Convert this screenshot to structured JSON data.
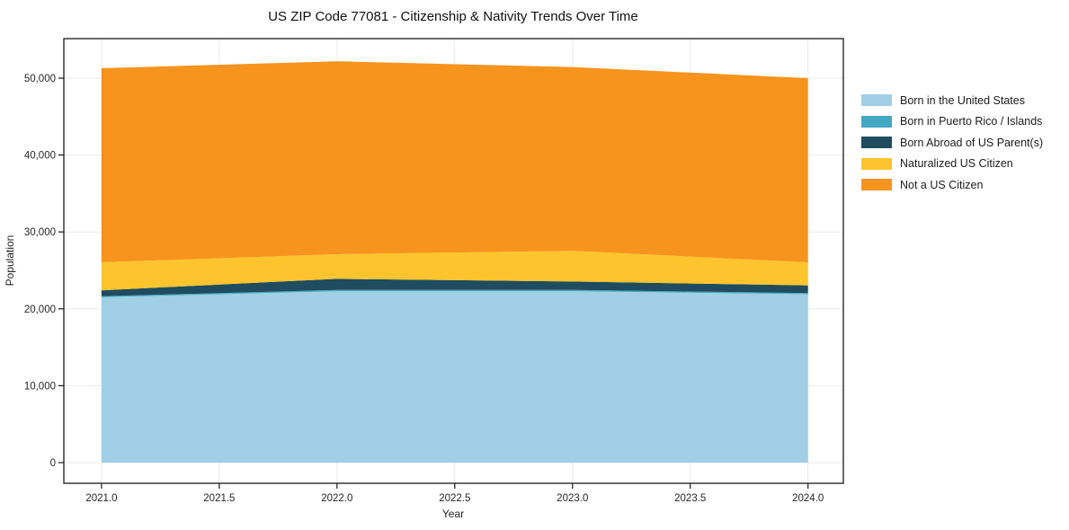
{
  "figure": {
    "title": "US ZIP Code 77081 - Citizenship & Nativity Trends Over Time",
    "xlabel": "Year",
    "ylabel": "Population"
  },
  "chart_data": {
    "type": "area",
    "stacked": true,
    "title": "US ZIP Code 77081 - Citizenship & Nativity Trends Over Time",
    "xlabel": "Year",
    "ylabel": "Population",
    "x": [
      2021,
      2022,
      2023,
      2024
    ],
    "series": [
      {
        "name": "Born in the United States",
        "color": "#a0cfe6",
        "values": [
          21500,
          22300,
          22300,
          21900
        ]
      },
      {
        "name": "Born in Puerto Rico / Islands",
        "color": "#44a8c4",
        "values": [
          150,
          150,
          150,
          150
        ]
      },
      {
        "name": "Born Abroad of US Parent(s)",
        "color": "#1f4c5f",
        "values": [
          750,
          1450,
          1100,
          1000
        ]
      },
      {
        "name": "Naturalized US Citizen",
        "color": "#fdc42d",
        "values": [
          3650,
          3200,
          4000,
          3000
        ]
      },
      {
        "name": "Not a US Citizen",
        "color": "#f7941e",
        "values": [
          25250,
          25100,
          23900,
          23950
        ]
      }
    ],
    "totals": [
      51300,
      52200,
      51450,
      50000
    ],
    "xticks": [
      2021.0,
      2021.5,
      2022.0,
      2022.5,
      2023.0,
      2023.5,
      2024.0
    ],
    "xtick_labels": [
      "2021.0",
      "2021.5",
      "2022.0",
      "2022.5",
      "2023.0",
      "2023.5",
      "2024.0"
    ],
    "yticks": [
      0,
      10000,
      20000,
      30000,
      40000,
      50000
    ],
    "ytick_labels": [
      "0",
      "10,000",
      "20,000",
      "30,000",
      "40,000",
      "50,000"
    ],
    "xlim": [
      2020.84,
      2024.15
    ],
    "ylim": [
      -2690,
      55140
    ],
    "grid": true,
    "grid_color": "#e9e9e9",
    "spine_color": "#1a1a1a",
    "legend_position": "outside-right"
  }
}
